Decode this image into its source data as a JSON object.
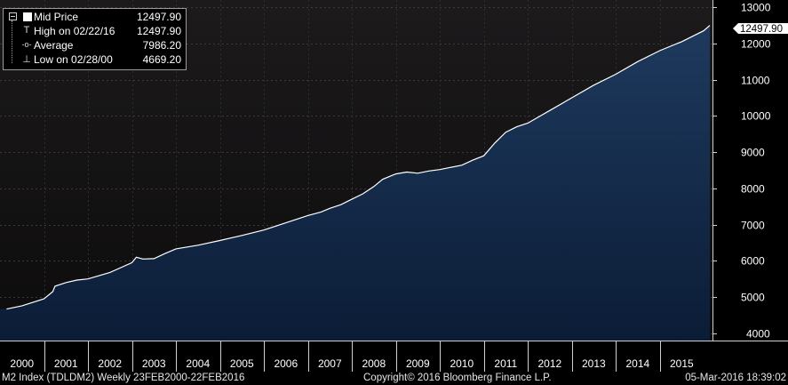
{
  "legend": {
    "items": [
      {
        "label": "Mid Price",
        "value": "12497.90",
        "mark": "swatch"
      },
      {
        "label": "High on 02/22/16",
        "value": "12497.90",
        "mark": "T"
      },
      {
        "label": "Average",
        "value": "7986.20",
        "mark": "-o-"
      },
      {
        "label": "Low on 02/28/00",
        "value": "4669.20",
        "mark": "⊥"
      }
    ]
  },
  "last_price_tag": "12497.90",
  "footer": {
    "left": "M2 Index (TDLDM2)  Weekly 23FEB2000-22FEB2016",
    "center": "Copyright© 2016 Bloomberg Finance L.P.",
    "right": "05-Mar-2016 18:39:02"
  },
  "colors": {
    "background": "#000000",
    "plot_bg_top": "#1a1718",
    "area_fill_top": "#1b3556",
    "area_fill_bottom": "#0b1c36",
    "line": "#ffffff",
    "axis_text": "#ffffff",
    "gridline": "#3a3a3a"
  },
  "chart_data": {
    "type": "area",
    "title": "",
    "xlabel": "",
    "ylabel": "",
    "ylim": [
      3800,
      13200
    ],
    "y_ticks": [
      4000,
      5000,
      6000,
      7000,
      8000,
      9000,
      10000,
      11000,
      12000,
      13000
    ],
    "x_ticks": [
      "2000",
      "2001",
      "2002",
      "2003",
      "2004",
      "2005",
      "2006",
      "2007",
      "2008",
      "2009",
      "2010",
      "2011",
      "2012",
      "2013",
      "2014",
      "2015"
    ],
    "xlim": [
      2000.0,
      2016.2
    ],
    "grid": true,
    "legend_position": "top-left",
    "series": [
      {
        "name": "Mid Price",
        "x": [
          2000.15,
          2000.5,
          2001.0,
          2001.2,
          2001.25,
          2001.5,
          2001.75,
          2002.0,
          2002.5,
          2003.0,
          2003.1,
          2003.25,
          2003.5,
          2003.75,
          2004.0,
          2004.5,
          2005.0,
          2005.5,
          2006.0,
          2006.5,
          2007.0,
          2007.3,
          2007.5,
          2007.75,
          2008.0,
          2008.25,
          2008.5,
          2008.7,
          2008.9,
          2009.0,
          2009.25,
          2009.5,
          2009.75,
          2010.0,
          2010.25,
          2010.5,
          2010.75,
          2011.0,
          2011.25,
          2011.5,
          2011.75,
          2012.0,
          2012.5,
          2013.0,
          2013.5,
          2014.0,
          2014.5,
          2015.0,
          2015.5,
          2016.0,
          2016.14
        ],
        "y": [
          4669,
          4760,
          4950,
          5150,
          5300,
          5400,
          5470,
          5500,
          5680,
          5950,
          6100,
          6050,
          6060,
          6200,
          6330,
          6430,
          6560,
          6700,
          6850,
          7050,
          7250,
          7350,
          7450,
          7550,
          7700,
          7850,
          8050,
          8250,
          8350,
          8400,
          8450,
          8420,
          8480,
          8520,
          8580,
          8640,
          8780,
          8900,
          9250,
          9550,
          9700,
          9800,
          10150,
          10500,
          10850,
          11150,
          11500,
          11800,
          12050,
          12350,
          12498
        ]
      }
    ]
  }
}
